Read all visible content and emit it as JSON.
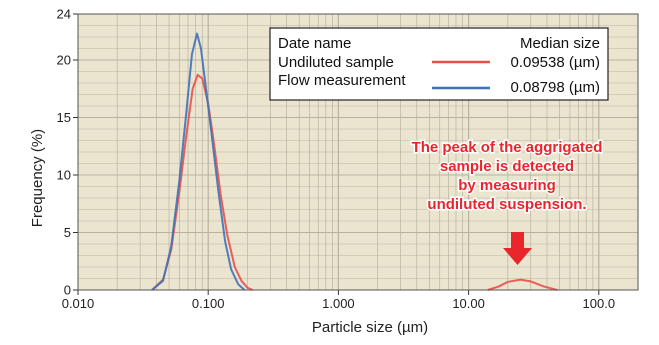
{
  "chart_data": {
    "type": "line",
    "xscale": "log",
    "xlim": [
      0.01,
      200
    ],
    "ylim": [
      0,
      24
    ],
    "xlabel": "Particle size (µm)",
    "ylabel": "Frequency (%)",
    "xticks": [
      {
        "value": 0.01,
        "label": "0.010"
      },
      {
        "value": 0.1,
        "label": "0.100"
      },
      {
        "value": 1,
        "label": "1.000"
      },
      {
        "value": 10,
        "label": "10.00"
      },
      {
        "value": 100,
        "label": "100.0"
      }
    ],
    "yticks": [
      {
        "value": 0,
        "label": "0"
      },
      {
        "value": 5,
        "label": "5"
      },
      {
        "value": 10,
        "label": "10"
      },
      {
        "value": 15,
        "label": "15"
      },
      {
        "value": 20,
        "label": "20"
      },
      {
        "value": 24,
        "label": "24"
      }
    ],
    "grid": true,
    "legend": {
      "position": "top-right",
      "header_left": "Date name",
      "header_right": "Median size"
    },
    "series": [
      {
        "name": "Undiluted sample",
        "median": "0.09538 (µm)",
        "color": "#e8504a",
        "points": [
          [
            0.037,
            0
          ],
          [
            0.045,
            0.9
          ],
          [
            0.052,
            3.5
          ],
          [
            0.06,
            8.5
          ],
          [
            0.068,
            13.5
          ],
          [
            0.076,
            17.5
          ],
          [
            0.083,
            18.7
          ],
          [
            0.09,
            18.4
          ],
          [
            0.1,
            16.2
          ],
          [
            0.11,
            13.0
          ],
          [
            0.125,
            8.2
          ],
          [
            0.14,
            4.8
          ],
          [
            0.16,
            2.0
          ],
          [
            0.18,
            0.8
          ],
          [
            0.2,
            0.2
          ],
          [
            0.22,
            0
          ],
          [
            14,
            0
          ],
          [
            17,
            0.3
          ],
          [
            20,
            0.7
          ],
          [
            25,
            0.9
          ],
          [
            30,
            0.75
          ],
          [
            38,
            0.3
          ],
          [
            48,
            0
          ]
        ]
      },
      {
        "name": "Flow measurement",
        "median": "0.08798 (µm)",
        "color": "#3d72b8",
        "points": [
          [
            0.037,
            0
          ],
          [
            0.045,
            0.8
          ],
          [
            0.052,
            3.8
          ],
          [
            0.06,
            9.5
          ],
          [
            0.068,
            15.5
          ],
          [
            0.075,
            20.5
          ],
          [
            0.082,
            22.3
          ],
          [
            0.088,
            21.0
          ],
          [
            0.095,
            18.0
          ],
          [
            0.105,
            14.0
          ],
          [
            0.12,
            8.5
          ],
          [
            0.135,
            4.2
          ],
          [
            0.15,
            1.8
          ],
          [
            0.17,
            0.5
          ],
          [
            0.19,
            0
          ]
        ]
      }
    ],
    "annotation": {
      "lines": [
        "The peak of the aggrigated",
        "sample is detected",
        "by measuring",
        "undiluted suspension."
      ],
      "color": "#e8262b",
      "arrow_points_to": [
        25,
        0.9
      ]
    },
    "colors": {
      "plot_background": "#ebe5d0",
      "grid_line": "#b9b2a0"
    }
  }
}
